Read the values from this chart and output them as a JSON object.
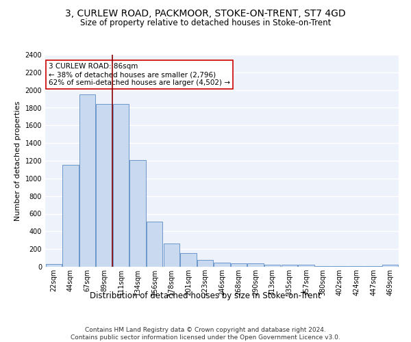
{
  "title": "3, CURLEW ROAD, PACKMOOR, STOKE-ON-TRENT, ST7 4GD",
  "subtitle": "Size of property relative to detached houses in Stoke-on-Trent",
  "xlabel": "Distribution of detached houses by size in Stoke-on-Trent",
  "ylabel": "Number of detached properties",
  "categories": [
    "22sqm",
    "44sqm",
    "67sqm",
    "89sqm",
    "111sqm",
    "134sqm",
    "156sqm",
    "178sqm",
    "201sqm",
    "223sqm",
    "246sqm",
    "268sqm",
    "290sqm",
    "313sqm",
    "335sqm",
    "357sqm",
    "380sqm",
    "402sqm",
    "424sqm",
    "447sqm",
    "469sqm"
  ],
  "values": [
    30,
    1150,
    1950,
    1840,
    1840,
    1210,
    510,
    260,
    155,
    80,
    45,
    40,
    35,
    20,
    25,
    20,
    5,
    10,
    5,
    5,
    20
  ],
  "bar_color": "#c9d9f0",
  "bar_edge_color": "#5a8ac6",
  "vline_x": 3.5,
  "vline_color": "#8b0000",
  "annotation_text": "3 CURLEW ROAD: 86sqm\n← 38% of detached houses are smaller (2,796)\n62% of semi-detached houses are larger (4,502) →",
  "annotation_box_color": "white",
  "annotation_box_edge": "#cc0000",
  "footnote": "Contains HM Land Registry data © Crown copyright and database right 2024.\nContains public sector information licensed under the Open Government Licence v3.0.",
  "ylim": [
    0,
    2400
  ],
  "background_color": "#eef2fb",
  "grid_color": "#ffffff",
  "title_fontsize": 10,
  "subtitle_fontsize": 8.5,
  "xlabel_fontsize": 8.5,
  "ylabel_fontsize": 8,
  "tick_fontsize": 7,
  "annotation_fontsize": 7.5,
  "footnote_fontsize": 6.5
}
